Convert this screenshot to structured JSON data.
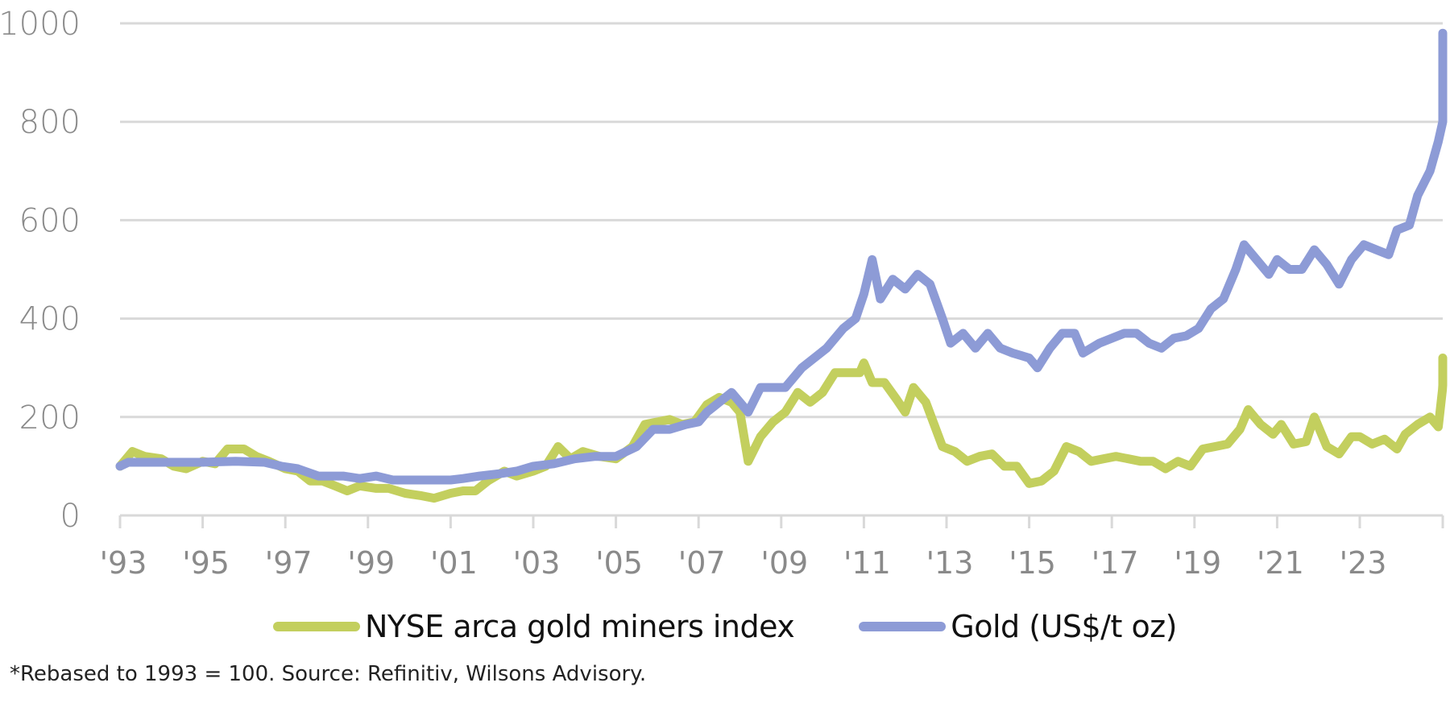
{
  "chart_data": {
    "type": "line",
    "title": "",
    "xlabel": "",
    "ylabel": "",
    "ylim": [
      0,
      1000
    ],
    "xlim": [
      1993,
      2025
    ],
    "yticks": [
      "0",
      "200",
      "400",
      "600",
      "800",
      "1000"
    ],
    "ytick_values": [
      0,
      200,
      400,
      600,
      800,
      1000
    ],
    "xticks": [
      "'93",
      "'95",
      "'97",
      "'99",
      "'01",
      "'03",
      "'05",
      "'07",
      "'09",
      "'11",
      "'13",
      "'15",
      "'17",
      "'19",
      "'21",
      "'23"
    ],
    "xtick_values": [
      1993,
      1995,
      1997,
      1999,
      2001,
      2003,
      2005,
      2007,
      2009,
      2011,
      2013,
      2015,
      2017,
      2019,
      2021,
      2023
    ],
    "grid": true,
    "legend_position": "bottom-center",
    "series": [
      {
        "name": "NYSE arca gold miners index",
        "color": "#c3cf5e",
        "points": [
          [
            1993.0,
            100
          ],
          [
            1993.3,
            130
          ],
          [
            1993.6,
            120
          ],
          [
            1994.0,
            115
          ],
          [
            1994.3,
            100
          ],
          [
            1994.6,
            95
          ],
          [
            1995.0,
            110
          ],
          [
            1995.3,
            105
          ],
          [
            1995.6,
            135
          ],
          [
            1996.0,
            135
          ],
          [
            1996.3,
            120
          ],
          [
            1996.6,
            110
          ],
          [
            1997.0,
            95
          ],
          [
            1997.3,
            90
          ],
          [
            1997.6,
            70
          ],
          [
            1997.9,
            70
          ],
          [
            1998.2,
            60
          ],
          [
            1998.5,
            50
          ],
          [
            1998.8,
            60
          ],
          [
            1999.2,
            55
          ],
          [
            1999.5,
            55
          ],
          [
            1999.9,
            45
          ],
          [
            2000.3,
            40
          ],
          [
            2000.6,
            35
          ],
          [
            2001.0,
            45
          ],
          [
            2001.3,
            50
          ],
          [
            2001.6,
            50
          ],
          [
            2001.9,
            70
          ],
          [
            2002.3,
            90
          ],
          [
            2002.6,
            80
          ],
          [
            2003.0,
            90
          ],
          [
            2003.3,
            100
          ],
          [
            2003.6,
            140
          ],
          [
            2003.9,
            115
          ],
          [
            2004.2,
            130
          ],
          [
            2004.6,
            120
          ],
          [
            2005.0,
            115
          ],
          [
            2005.4,
            140
          ],
          [
            2005.7,
            185
          ],
          [
            2006.0,
            190
          ],
          [
            2006.3,
            195
          ],
          [
            2006.6,
            185
          ],
          [
            2006.9,
            190
          ],
          [
            2007.2,
            225
          ],
          [
            2007.5,
            240
          ],
          [
            2007.8,
            230
          ],
          [
            2008.0,
            210
          ],
          [
            2008.2,
            110
          ],
          [
            2008.5,
            160
          ],
          [
            2008.8,
            190
          ],
          [
            2009.1,
            210
          ],
          [
            2009.4,
            250
          ],
          [
            2009.7,
            230
          ],
          [
            2010.0,
            250
          ],
          [
            2010.3,
            290
          ],
          [
            2010.6,
            290
          ],
          [
            2010.9,
            290
          ],
          [
            2011.0,
            310
          ],
          [
            2011.2,
            270
          ],
          [
            2011.5,
            270
          ],
          [
            2011.8,
            235
          ],
          [
            2012.0,
            210
          ],
          [
            2012.2,
            260
          ],
          [
            2012.5,
            230
          ],
          [
            2012.9,
            140
          ],
          [
            2013.2,
            130
          ],
          [
            2013.5,
            110
          ],
          [
            2013.8,
            120
          ],
          [
            2014.1,
            125
          ],
          [
            2014.4,
            100
          ],
          [
            2014.7,
            100
          ],
          [
            2015.0,
            65
          ],
          [
            2015.3,
            70
          ],
          [
            2015.6,
            90
          ],
          [
            2015.9,
            140
          ],
          [
            2016.2,
            130
          ],
          [
            2016.5,
            110
          ],
          [
            2016.8,
            115
          ],
          [
            2017.1,
            120
          ],
          [
            2017.4,
            115
          ],
          [
            2017.7,
            110
          ],
          [
            2018.0,
            110
          ],
          [
            2018.3,
            95
          ],
          [
            2018.6,
            110
          ],
          [
            2018.9,
            100
          ],
          [
            2019.2,
            135
          ],
          [
            2019.5,
            140
          ],
          [
            2019.8,
            145
          ],
          [
            2020.1,
            175
          ],
          [
            2020.3,
            215
          ],
          [
            2020.6,
            185
          ],
          [
            2020.9,
            165
          ],
          [
            2021.1,
            185
          ],
          [
            2021.4,
            145
          ],
          [
            2021.7,
            150
          ],
          [
            2021.9,
            200
          ],
          [
            2022.2,
            140
          ],
          [
            2022.5,
            125
          ],
          [
            2022.8,
            160
          ],
          [
            2023.0,
            160
          ],
          [
            2023.3,
            145
          ],
          [
            2023.6,
            155
          ],
          [
            2023.9,
            135
          ],
          [
            2024.1,
            165
          ],
          [
            2024.4,
            185
          ],
          [
            2024.7,
            200
          ],
          [
            2024.9,
            180
          ],
          [
            2025.0,
            255
          ],
          [
            2025.2,
            265
          ],
          [
            2025.3,
            320
          ]
        ]
      },
      {
        "name": "Gold (US$/t oz)",
        "color": "#8d9bd6",
        "points": [
          [
            1993.0,
            100
          ],
          [
            1993.2,
            108
          ],
          [
            1994.0,
            108
          ],
          [
            1995.0,
            108
          ],
          [
            1995.8,
            110
          ],
          [
            1996.5,
            108
          ],
          [
            1996.9,
            100
          ],
          [
            1997.3,
            95
          ],
          [
            1997.8,
            80
          ],
          [
            1998.4,
            80
          ],
          [
            1998.8,
            75
          ],
          [
            1999.2,
            80
          ],
          [
            1999.6,
            72
          ],
          [
            2000.0,
            72
          ],
          [
            2000.6,
            72
          ],
          [
            2001.0,
            72
          ],
          [
            2001.3,
            75
          ],
          [
            2001.7,
            80
          ],
          [
            2002.2,
            85
          ],
          [
            2002.6,
            90
          ],
          [
            2003.0,
            100
          ],
          [
            2003.5,
            105
          ],
          [
            2004.0,
            115
          ],
          [
            2004.5,
            120
          ],
          [
            2005.0,
            120
          ],
          [
            2005.5,
            140
          ],
          [
            2005.9,
            175
          ],
          [
            2006.3,
            175
          ],
          [
            2006.7,
            185
          ],
          [
            2007.0,
            190
          ],
          [
            2007.2,
            210
          ],
          [
            2007.5,
            230
          ],
          [
            2007.8,
            250
          ],
          [
            2008.2,
            210
          ],
          [
            2008.5,
            260
          ],
          [
            2008.8,
            260
          ],
          [
            2009.1,
            260
          ],
          [
            2009.5,
            300
          ],
          [
            2009.8,
            320
          ],
          [
            2010.1,
            340
          ],
          [
            2010.5,
            380
          ],
          [
            2010.8,
            400
          ],
          [
            2011.0,
            450
          ],
          [
            2011.2,
            520
          ],
          [
            2011.4,
            440
          ],
          [
            2011.7,
            480
          ],
          [
            2012.0,
            460
          ],
          [
            2012.3,
            490
          ],
          [
            2012.6,
            470
          ],
          [
            2012.9,
            400
          ],
          [
            2013.1,
            350
          ],
          [
            2013.4,
            370
          ],
          [
            2013.7,
            340
          ],
          [
            2014.0,
            370
          ],
          [
            2014.3,
            340
          ],
          [
            2014.6,
            330
          ],
          [
            2015.0,
            320
          ],
          [
            2015.2,
            300
          ],
          [
            2015.5,
            340
          ],
          [
            2015.8,
            370
          ],
          [
            2016.1,
            370
          ],
          [
            2016.3,
            330
          ],
          [
            2016.7,
            350
          ],
          [
            2017.0,
            360
          ],
          [
            2017.3,
            370
          ],
          [
            2017.6,
            370
          ],
          [
            2017.9,
            350
          ],
          [
            2018.2,
            340
          ],
          [
            2018.5,
            360
          ],
          [
            2018.8,
            365
          ],
          [
            2019.1,
            380
          ],
          [
            2019.4,
            420
          ],
          [
            2019.7,
            440
          ],
          [
            2020.0,
            500
          ],
          [
            2020.2,
            550
          ],
          [
            2020.5,
            520
          ],
          [
            2020.8,
            490
          ],
          [
            2021.0,
            520
          ],
          [
            2021.3,
            500
          ],
          [
            2021.6,
            500
          ],
          [
            2021.9,
            540
          ],
          [
            2022.2,
            510
          ],
          [
            2022.5,
            470
          ],
          [
            2022.8,
            520
          ],
          [
            2023.1,
            550
          ],
          [
            2023.4,
            540
          ],
          [
            2023.7,
            530
          ],
          [
            2023.9,
            580
          ],
          [
            2024.2,
            590
          ],
          [
            2024.4,
            650
          ],
          [
            2024.7,
            700
          ],
          [
            2024.9,
            760
          ],
          [
            2025.1,
            800
          ],
          [
            2025.25,
            900
          ],
          [
            2025.35,
            950
          ],
          [
            2025.4,
            980
          ]
        ]
      }
    ]
  },
  "legend": {
    "items": [
      {
        "label": "NYSE arca gold miners index",
        "color": "#c3cf5e"
      },
      {
        "label": "Gold (US$/t oz)",
        "color": "#8d9bd6"
      }
    ]
  },
  "footnote": "*Rebased to 1993 = 100. Source: Refinitiv, Wilsons Advisory."
}
